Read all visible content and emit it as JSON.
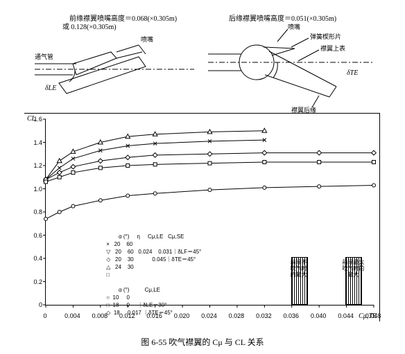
{
  "top_left": {
    "caption_line1": "前缘襟翼喷嘴高度＝0.068(×0.305m)",
    "caption_line2": "或 0.128(×0.305m)",
    "labels": {
      "nozzle": "喷嘴",
      "duct": "通气管",
      "delta": "δLE"
    }
  },
  "top_right": {
    "caption_line1": "后缘襟翼喷嘴高度＝0.051(×0.305m)",
    "labels": {
      "nozzle": "喷嘴",
      "spring": "弹簧楔形片",
      "upper": "襟翼上表",
      "delta": "δTE",
      "trailing": "襟翼后缘"
    }
  },
  "chart": {
    "type": "line-scatter",
    "y_axis": {
      "label": "CL",
      "min": 0,
      "max": 1.6,
      "ticks": [
        0,
        0.2,
        0.4,
        0.6,
        0.8,
        1.0,
        1.2,
        1.4,
        1.6
      ]
    },
    "x_axis": {
      "label": "Cμ,TE",
      "min": 0,
      "max": 0.048,
      "ticks": [
        0,
        0.004,
        0.008,
        0.012,
        0.016,
        0.02,
        0.024,
        0.028,
        0.032,
        0.036,
        0.04,
        0.044,
        0.048
      ]
    },
    "grid_color": "#000000",
    "background_color": "#ffffff",
    "line_color": "#000000",
    "line_width": 1,
    "marker_size": 5,
    "series": [
      {
        "marker": "triangle",
        "x": [
          0,
          0.002,
          0.004,
          0.008,
          0.012,
          0.016,
          0.024,
          0.032
        ],
        "y": [
          1.08,
          1.24,
          1.32,
          1.4,
          1.45,
          1.47,
          1.49,
          1.5
        ]
      },
      {
        "marker": "x",
        "x": [
          0,
          0.002,
          0.004,
          0.008,
          0.012,
          0.016,
          0.024,
          0.032
        ],
        "y": [
          1.08,
          1.18,
          1.26,
          1.33,
          1.37,
          1.39,
          1.41,
          1.42
        ]
      },
      {
        "marker": "diamond",
        "x": [
          0,
          0.002,
          0.004,
          0.008,
          0.012,
          0.016,
          0.024,
          0.032,
          0.04,
          0.048
        ],
        "y": [
          1.08,
          1.14,
          1.19,
          1.24,
          1.27,
          1.29,
          1.3,
          1.31,
          1.31,
          1.31
        ]
      },
      {
        "marker": "square",
        "x": [
          0,
          0.002,
          0.004,
          0.008,
          0.012,
          0.016,
          0.024,
          0.032,
          0.04,
          0.048
        ],
        "y": [
          1.06,
          1.1,
          1.14,
          1.18,
          1.2,
          1.21,
          1.22,
          1.23,
          1.23,
          1.23
        ]
      },
      {
        "marker": "circle",
        "x": [
          0,
          0.002,
          0.004,
          0.008,
          0.012,
          0.016,
          0.024,
          0.032,
          0.04,
          0.048
        ],
        "y": [
          0.74,
          0.8,
          0.85,
          0.9,
          0.94,
          0.96,
          0.99,
          1.01,
          1.02,
          1.03
        ]
      }
    ],
    "legend": {
      "header1": "α (°)     η     Cμ,LE   Cμ,SE",
      "rows1": [
        "×   20    60",
        "▽   20    60   0.024    0.031｜δLF＝45°",
        "◇   20    30            0.045｜δTE＝45°",
        "△   24    30",
        "□"
      ],
      "header2": "α (°)          Cμ,LE",
      "rows2": [
        "○  10     0",
        "□  18     0     ｜δLE＝30°",
        "◇  18     0.017 ｜δTE＝45°"
      ]
    },
    "bars": [
      {
        "x": 0.037,
        "height": 0.4,
        "label": "前缘不\n吹气时\n的最大"
      },
      {
        "x": 0.045,
        "height": 0.4,
        "label": "前缘最大\n吹气时的\n最大"
      }
    ]
  },
  "figure_caption": "图 6-55   吹气襟翼的 Cμ 与 CL 关系"
}
